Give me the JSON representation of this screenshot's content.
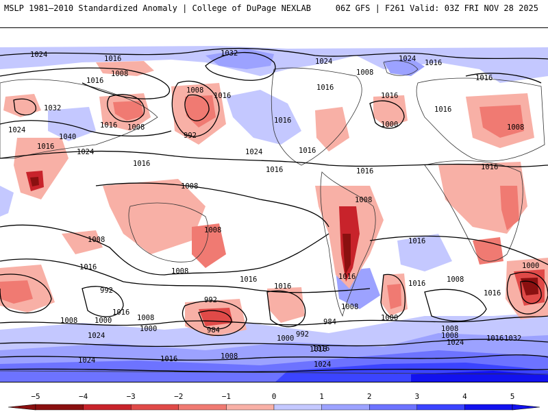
{
  "header": {
    "left": "MSLP 1981–2010 Standardized Anomaly | College of DuPage NEXLAB",
    "right": "06Z GFS | F261 Valid: 03Z FRI NOV 28 2025"
  },
  "map": {
    "isobar_labels": [
      "1024",
      "1016",
      "1032",
      "1024",
      "1024",
      "1008",
      "1016",
      "1008",
      "1016",
      "1008",
      "1016",
      "1016",
      "1032",
      "1040",
      "1016",
      "1016",
      "1008",
      "992",
      "1024",
      "1016",
      "1016",
      "1016",
      "1024",
      "1016",
      "1016",
      "1000",
      "1008",
      "1016",
      "1024",
      "1016",
      "1016",
      "1016",
      "1008",
      "1008",
      "1008",
      "1016",
      "1008",
      "1016",
      "1008",
      "1016",
      "1016",
      "1016",
      "1008",
      "1016",
      "992",
      "1000",
      "1008",
      "1000",
      "1016",
      "1016",
      "992",
      "984",
      "984",
      "1008",
      "1000",
      "1008",
      "1024",
      "1016",
      "1008",
      "1024",
      "1016",
      "1000",
      "992",
      "1008",
      "1008",
      "1024",
      "1000",
      "1032",
      "1016",
      "1016",
      "1024"
    ]
  },
  "colorbar": {
    "ticks": [
      "−5",
      "−4",
      "−3",
      "−2",
      "−1",
      "0",
      "1",
      "2",
      "3",
      "4",
      "5"
    ],
    "colors": [
      "#8a1010",
      "#c8232b",
      "#e04a48",
      "#f07a72",
      "#f8b0a6",
      "#ffffff",
      "#c4c8ff",
      "#9ca2ff",
      "#6d73ff",
      "#3b44ff",
      "#1212ee"
    ]
  }
}
